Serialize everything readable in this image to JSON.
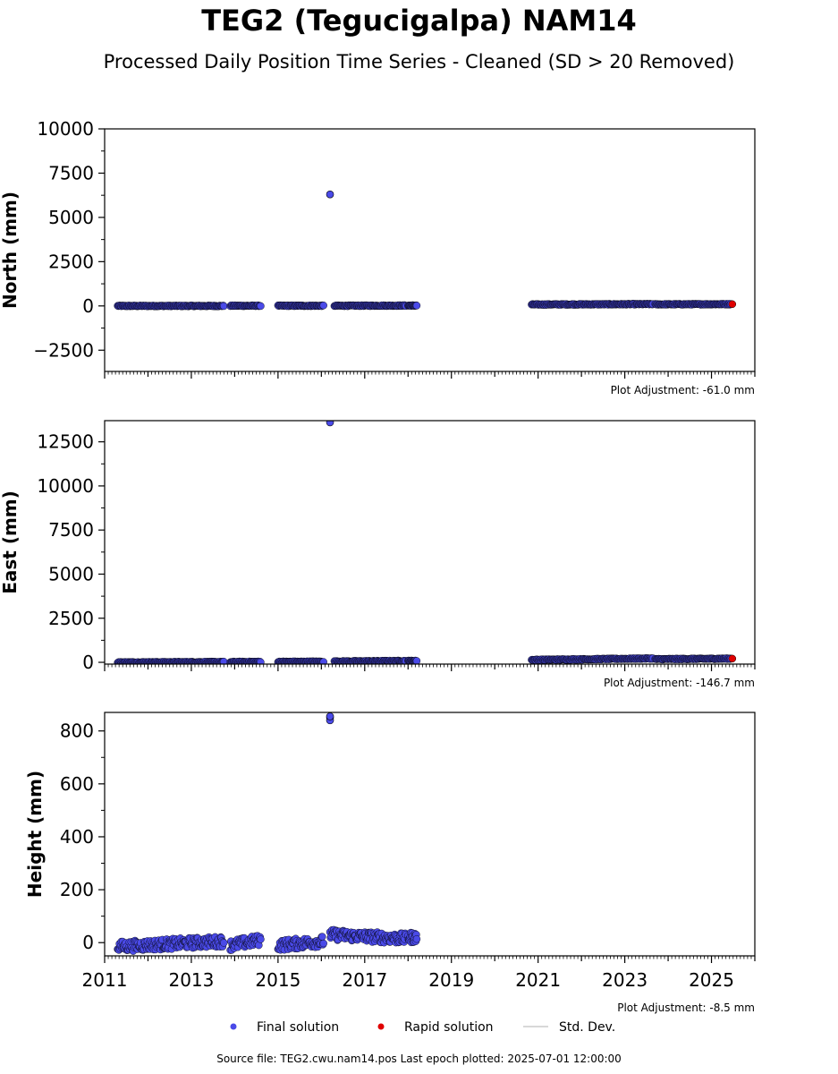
{
  "title": "TEG2 (Tegucigalpa) NAM14",
  "subtitle": "Processed Daily Position Time Series - Cleaned (SD > 20 Removed)",
  "footer": "Source file: TEG2.cwu.nam14.pos  Last epoch plotted: 2025-07-01 12:00:00",
  "legend": {
    "final": "Final solution",
    "rapid": "Rapid solution",
    "stddev": "Std. Dev."
  },
  "colors": {
    "final": "#4a4ae8",
    "rapid": "#e00000",
    "stddev": "#cccccc",
    "edge": "#000000"
  },
  "x_axis": {
    "range": [
      2011,
      2026
    ],
    "major_ticks": [
      2011,
      2013,
      2015,
      2017,
      2019,
      2021,
      2023,
      2025
    ],
    "tick_labels": [
      "2011",
      "2013",
      "2015",
      "2017",
      "2019",
      "2021",
      "2023",
      "2025"
    ]
  },
  "chart_data": [
    {
      "type": "scatter",
      "panel": "north",
      "ylabel": "North (mm)",
      "ylim": [
        -3700,
        10000
      ],
      "yticks": [
        -2500,
        0,
        2500,
        5000,
        7500,
        10000
      ],
      "ytick_labels": [
        "−2500",
        "0",
        "2500",
        "5000",
        "7500",
        "10000"
      ],
      "adjustment": "Plot Adjustment: -61.0 mm",
      "segments": [
        {
          "x": [
            2011.3,
            2013.75
          ],
          "y": [
            0,
            0
          ]
        },
        {
          "x": [
            2013.9,
            2014.6
          ],
          "y": [
            10,
            10
          ]
        },
        {
          "x": [
            2015.0,
            2016.05
          ],
          "y": [
            10,
            10
          ]
        },
        {
          "x": [
            2016.3,
            2017.95
          ],
          "y": [
            10,
            20
          ]
        },
        {
          "x": [
            2018.0,
            2018.2
          ],
          "y": [
            20,
            20
          ]
        },
        {
          "x": [
            2020.85,
            2023.65
          ],
          "y": [
            80,
            100
          ]
        },
        {
          "x": [
            2023.7,
            2025.45
          ],
          "y": [
            90,
            100
          ]
        }
      ],
      "outliers": [
        {
          "x": 2016.2,
          "y": 6300
        }
      ],
      "rapid": [
        {
          "x": 2025.48,
          "y": 100
        }
      ]
    },
    {
      "type": "scatter",
      "panel": "east",
      "ylabel": "East (mm)",
      "ylim": [
        -100,
        13700
      ],
      "yticks": [
        0,
        2500,
        5000,
        7500,
        10000,
        12500
      ],
      "ytick_labels": [
        "0",
        "2500",
        "5000",
        "7500",
        "10000",
        "12500"
      ],
      "adjustment": "Plot Adjustment: -146.7 mm",
      "segments": [
        {
          "x": [
            2011.3,
            2013.75
          ],
          "y": [
            0,
            20
          ]
        },
        {
          "x": [
            2013.9,
            2014.6
          ],
          "y": [
            20,
            30
          ]
        },
        {
          "x": [
            2015.0,
            2016.05
          ],
          "y": [
            30,
            40
          ]
        },
        {
          "x": [
            2016.3,
            2017.95
          ],
          "y": [
            50,
            80
          ]
        },
        {
          "x": [
            2018.0,
            2018.2
          ],
          "y": [
            80,
            80
          ]
        },
        {
          "x": [
            2020.85,
            2023.65
          ],
          "y": [
            140,
            220
          ]
        },
        {
          "x": [
            2023.7,
            2025.45
          ],
          "y": [
            180,
            210
          ]
        }
      ],
      "outliers": [
        {
          "x": 2016.2,
          "y": 13600
        }
      ],
      "rapid": [
        {
          "x": 2025.48,
          "y": 210
        }
      ]
    },
    {
      "type": "scatter",
      "panel": "height",
      "ylabel": "Height (mm)",
      "ylim": [
        -50,
        870
      ],
      "yticks": [
        0,
        200,
        400,
        600,
        800
      ],
      "ytick_labels": [
        "0",
        "200",
        "400",
        "600",
        "800"
      ],
      "adjustment": "Plot Adjustment: -8.5 mm",
      "segments": [
        {
          "x": [
            2011.3,
            2013.75
          ],
          "y": [
            -15,
            5
          ]
        },
        {
          "x": [
            2013.9,
            2014.6
          ],
          "y": [
            -10,
            10
          ]
        },
        {
          "x": [
            2015.0,
            2016.05
          ],
          "y": [
            -10,
            5
          ]
        },
        {
          "x": [
            2016.2,
            2017.95
          ],
          "y": [
            30,
            15
          ]
        },
        {
          "x": [
            2018.0,
            2018.2
          ],
          "y": [
            20,
            20
          ]
        }
      ],
      "outliers": [
        {
          "x": 2016.2,
          "y": 850
        },
        {
          "x": 2016.2,
          "y": 840
        },
        {
          "x": 2016.2,
          "y": 855
        }
      ],
      "rapid": []
    }
  ]
}
